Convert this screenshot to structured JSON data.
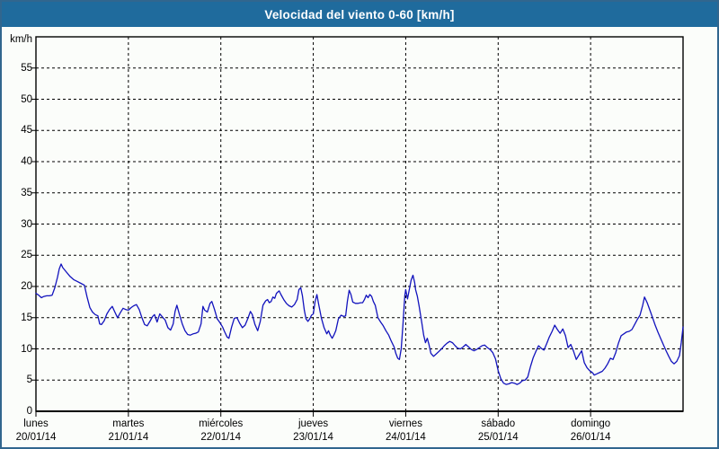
{
  "title_bar": {
    "title": "Velocidad del viento 0-60 [km/h]",
    "bg_color": "#1f6b9d",
    "text_color": "#ffffff"
  },
  "frame": {
    "outer_border_color": "#31668e",
    "background_color": "#fbfdfa"
  },
  "chart_data": {
    "type": "line",
    "title": "Velocidad del viento 0-60 [km/h]",
    "ylabel": "km/h",
    "ylim": [
      0,
      60
    ],
    "ytick_step": 5,
    "ytick_labels": [
      "0",
      "5",
      "10",
      "15",
      "20",
      "25",
      "30",
      "35",
      "40",
      "45",
      "50",
      "55"
    ],
    "grid": "dashed-black",
    "legend": "none",
    "line_color": "#1213bd",
    "axis_color": "#000000",
    "x_days": [
      {
        "name": "lunes",
        "date": "20/01/14"
      },
      {
        "name": "martes",
        "date": "21/01/14"
      },
      {
        "name": "miércoles",
        "date": "22/01/14"
      },
      {
        "name": "jueves",
        "date": "23/01/14"
      },
      {
        "name": "viernes",
        "date": "24/01/14"
      },
      {
        "name": "sábado",
        "date": "25/01/14"
      },
      {
        "name": "domingo",
        "date": "26/01/14"
      }
    ],
    "series": [
      {
        "name": "Velocidad del viento [km/h]",
        "x_unit": "days since 20/01/14",
        "points": [
          [
            0,
            18.9
          ],
          [
            0.029,
            18.6
          ],
          [
            0.058,
            18.2
          ],
          [
            0.087,
            18.4
          ],
          [
            0.117,
            18.5
          ],
          [
            0.146,
            18.5
          ],
          [
            0.175,
            18.6
          ],
          [
            0.204,
            19.8
          ],
          [
            0.233,
            21.5
          ],
          [
            0.252,
            22.8
          ],
          [
            0.272,
            23.6
          ],
          [
            0.291,
            23
          ],
          [
            0.33,
            22.3
          ],
          [
            0.369,
            21.6
          ],
          [
            0.408,
            21.1
          ],
          [
            0.447,
            20.8
          ],
          [
            0.485,
            20.5
          ],
          [
            0.524,
            20.2
          ],
          [
            0.553,
            18.3
          ],
          [
            0.583,
            16.6
          ],
          [
            0.612,
            15.9
          ],
          [
            0.641,
            15.5
          ],
          [
            0.67,
            15.3
          ],
          [
            0.689,
            14
          ],
          [
            0.709,
            13.9
          ],
          [
            0.738,
            14.5
          ],
          [
            0.767,
            15.6
          ],
          [
            0.796,
            16.3
          ],
          [
            0.825,
            16.8
          ],
          [
            0.854,
            15.9
          ],
          [
            0.883,
            15
          ],
          [
            0.913,
            15.8
          ],
          [
            0.942,
            16.5
          ],
          [
            0.971,
            16.3
          ],
          [
            1,
            16.2
          ],
          [
            1.029,
            16.6
          ],
          [
            1.058,
            16.9
          ],
          [
            1.087,
            17.1
          ],
          [
            1.117,
            16.3
          ],
          [
            1.146,
            15
          ],
          [
            1.175,
            13.9
          ],
          [
            1.204,
            13.7
          ],
          [
            1.233,
            14.4
          ],
          [
            1.262,
            15.2
          ],
          [
            1.282,
            15.5
          ],
          [
            1.311,
            14.3
          ],
          [
            1.34,
            15.6
          ],
          [
            1.369,
            15.1
          ],
          [
            1.398,
            14.6
          ],
          [
            1.427,
            13.4
          ],
          [
            1.456,
            13
          ],
          [
            1.485,
            14
          ],
          [
            1.505,
            16
          ],
          [
            1.524,
            17
          ],
          [
            1.553,
            15.5
          ],
          [
            1.583,
            14
          ],
          [
            1.612,
            12.9
          ],
          [
            1.641,
            12.3
          ],
          [
            1.67,
            12.2
          ],
          [
            1.699,
            12.4
          ],
          [
            1.728,
            12.5
          ],
          [
            1.757,
            12.7
          ],
          [
            1.786,
            14
          ],
          [
            1.806,
            16.8
          ],
          [
            1.825,
            16.2
          ],
          [
            1.854,
            15.9
          ],
          [
            1.883,
            17.3
          ],
          [
            1.903,
            17.6
          ],
          [
            1.932,
            16.3
          ],
          [
            1.961,
            14.8
          ],
          [
            1.99,
            14.2
          ],
          [
            2.019,
            13.5
          ],
          [
            2.039,
            12.8
          ],
          [
            2.068,
            11.9
          ],
          [
            2.087,
            11.7
          ],
          [
            2.117,
            13.5
          ],
          [
            2.146,
            14.9
          ],
          [
            2.175,
            15
          ],
          [
            2.204,
            14.1
          ],
          [
            2.233,
            13.4
          ],
          [
            2.262,
            13.8
          ],
          [
            2.291,
            14.8
          ],
          [
            2.32,
            16
          ],
          [
            2.34,
            15.5
          ],
          [
            2.369,
            13.9
          ],
          [
            2.398,
            12.9
          ],
          [
            2.427,
            14.4
          ],
          [
            2.456,
            17
          ],
          [
            2.485,
            17.7
          ],
          [
            2.505,
            17.9
          ],
          [
            2.524,
            17.4
          ],
          [
            2.544,
            17.6
          ],
          [
            2.563,
            18.3
          ],
          [
            2.583,
            18.1
          ],
          [
            2.602,
            18.9
          ],
          [
            2.631,
            19.3
          ],
          [
            2.65,
            18.7
          ],
          [
            2.68,
            17.9
          ],
          [
            2.709,
            17.3
          ],
          [
            2.738,
            16.9
          ],
          [
            2.767,
            16.7
          ],
          [
            2.796,
            17.1
          ],
          [
            2.825,
            17.9
          ],
          [
            2.845,
            19.5
          ],
          [
            2.864,
            19.8
          ],
          [
            2.883,
            18.5
          ],
          [
            2.903,
            16.2
          ],
          [
            2.922,
            14.8
          ],
          [
            2.942,
            14.4
          ],
          [
            2.961,
            14.8
          ],
          [
            2.981,
            15.4
          ],
          [
            3,
            15.6
          ],
          [
            3.019,
            17.5
          ],
          [
            3.039,
            18.7
          ],
          [
            3.058,
            17.2
          ],
          [
            3.087,
            15
          ],
          [
            3.117,
            13.4
          ],
          [
            3.146,
            12.4
          ],
          [
            3.165,
            12.9
          ],
          [
            3.184,
            12.2
          ],
          [
            3.204,
            11.7
          ],
          [
            3.223,
            12.2
          ],
          [
            3.243,
            12.9
          ],
          [
            3.272,
            14.8
          ],
          [
            3.301,
            15.4
          ],
          [
            3.33,
            15.2
          ],
          [
            3.35,
            15.3
          ],
          [
            3.369,
            17.6
          ],
          [
            3.388,
            19.4
          ],
          [
            3.408,
            18.7
          ],
          [
            3.427,
            17.5
          ],
          [
            3.456,
            17.3
          ],
          [
            3.485,
            17.3
          ],
          [
            3.515,
            17.4
          ],
          [
            3.534,
            17.4
          ],
          [
            3.553,
            17.9
          ],
          [
            3.573,
            18.6
          ],
          [
            3.592,
            18.2
          ],
          [
            3.612,
            18.7
          ],
          [
            3.631,
            18.4
          ],
          [
            3.65,
            17.6
          ],
          [
            3.67,
            17
          ],
          [
            3.699,
            15
          ],
          [
            3.728,
            14.3
          ],
          [
            3.757,
            13.7
          ],
          [
            3.786,
            12.9
          ],
          [
            3.816,
            12.2
          ],
          [
            3.845,
            11.2
          ],
          [
            3.874,
            10.3
          ],
          [
            3.893,
            9.3
          ],
          [
            3.913,
            8.5
          ],
          [
            3.932,
            8.3
          ],
          [
            3.951,
            10
          ],
          [
            3.971,
            14
          ],
          [
            3.981,
            16.5
          ],
          [
            3.99,
            18.5
          ],
          [
            4,
            19.5
          ],
          [
            4.019,
            18
          ],
          [
            4.039,
            19.5
          ],
          [
            4.058,
            21
          ],
          [
            4.078,
            21.8
          ],
          [
            4.097,
            20.6
          ],
          [
            4.107,
            19.5
          ],
          [
            4.126,
            18.4
          ],
          [
            4.146,
            16.8
          ],
          [
            4.165,
            15
          ],
          [
            4.175,
            14.1
          ],
          [
            4.194,
            12.2
          ],
          [
            4.214,
            11
          ],
          [
            4.233,
            11.7
          ],
          [
            4.252,
            10.7
          ],
          [
            4.272,
            9.3
          ],
          [
            4.301,
            8.8
          ],
          [
            4.33,
            9.2
          ],
          [
            4.359,
            9.6
          ],
          [
            4.388,
            10
          ],
          [
            4.417,
            10.5
          ],
          [
            4.447,
            10.9
          ],
          [
            4.476,
            11.2
          ],
          [
            4.505,
            11
          ],
          [
            4.534,
            10.5
          ],
          [
            4.563,
            10.1
          ],
          [
            4.592,
            10
          ],
          [
            4.621,
            10.3
          ],
          [
            4.65,
            10.7
          ],
          [
            4.68,
            10.3
          ],
          [
            4.709,
            9.9
          ],
          [
            4.738,
            9.7
          ],
          [
            4.767,
            9.9
          ],
          [
            4.796,
            10.2
          ],
          [
            4.825,
            10.5
          ],
          [
            4.854,
            10.6
          ],
          [
            4.883,
            10.2
          ],
          [
            4.913,
            9.9
          ],
          [
            4.942,
            9.4
          ],
          [
            4.971,
            8.4
          ],
          [
            5,
            6.5
          ],
          [
            5.029,
            5.2
          ],
          [
            5.058,
            4.5
          ],
          [
            5.087,
            4.3
          ],
          [
            5.117,
            4.4
          ],
          [
            5.146,
            4.6
          ],
          [
            5.175,
            4.5
          ],
          [
            5.204,
            4.3
          ],
          [
            5.233,
            4.5
          ],
          [
            5.262,
            4.9
          ],
          [
            5.291,
            5
          ],
          [
            5.32,
            5.5
          ],
          [
            5.35,
            7.2
          ],
          [
            5.379,
            8.6
          ],
          [
            5.408,
            9.6
          ],
          [
            5.437,
            10.5
          ],
          [
            5.466,
            10.1
          ],
          [
            5.495,
            9.8
          ],
          [
            5.524,
            10.8
          ],
          [
            5.553,
            11.9
          ],
          [
            5.583,
            12.8
          ],
          [
            5.612,
            13.8
          ],
          [
            5.641,
            13.1
          ],
          [
            5.67,
            12.5
          ],
          [
            5.699,
            13.2
          ],
          [
            5.728,
            12.1
          ],
          [
            5.757,
            10.2
          ],
          [
            5.786,
            10.7
          ],
          [
            5.816,
            9.6
          ],
          [
            5.845,
            8.3
          ],
          [
            5.874,
            9
          ],
          [
            5.903,
            9.7
          ],
          [
            5.932,
            7.8
          ],
          [
            5.961,
            7
          ],
          [
            5.99,
            6.5
          ],
          [
            6.019,
            6.2
          ],
          [
            6.039,
            5.8
          ],
          [
            6.068,
            6
          ],
          [
            6.097,
            6.2
          ],
          [
            6.126,
            6.4
          ],
          [
            6.155,
            6.9
          ],
          [
            6.184,
            7.6
          ],
          [
            6.214,
            8.5
          ],
          [
            6.243,
            8.3
          ],
          [
            6.272,
            9.4
          ],
          [
            6.301,
            10.9
          ],
          [
            6.33,
            12.1
          ],
          [
            6.359,
            12.4
          ],
          [
            6.388,
            12.7
          ],
          [
            6.417,
            12.8
          ],
          [
            6.447,
            13.1
          ],
          [
            6.476,
            13.9
          ],
          [
            6.505,
            14.7
          ],
          [
            6.534,
            15.4
          ],
          [
            6.563,
            17
          ],
          [
            6.583,
            18.3
          ],
          [
            6.612,
            17.4
          ],
          [
            6.641,
            16.2
          ],
          [
            6.67,
            15
          ],
          [
            6.699,
            13.8
          ],
          [
            6.728,
            12.7
          ],
          [
            6.757,
            11.7
          ],
          [
            6.786,
            10.7
          ],
          [
            6.816,
            9.7
          ],
          [
            6.845,
            8.8
          ],
          [
            6.874,
            8
          ],
          [
            6.903,
            7.6
          ],
          [
            6.932,
            8
          ],
          [
            6.961,
            8.9
          ],
          [
            6.981,
            11
          ],
          [
            7,
            13.5
          ]
        ]
      }
    ]
  }
}
